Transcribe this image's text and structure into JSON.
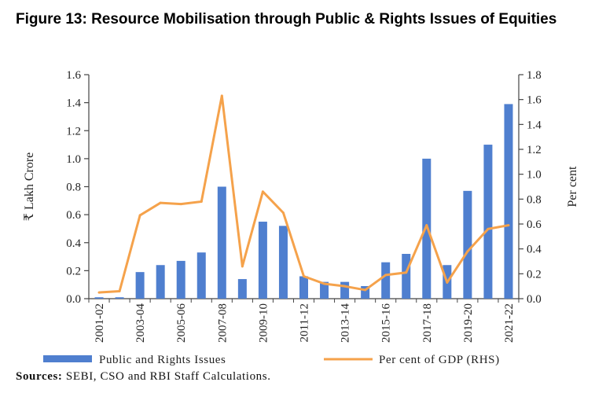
{
  "figure_title": "Figure 13:  Resource Mobilisation through Public & Rights Issues of Equities",
  "sources": {
    "label": "Sources:",
    "text": "SEBI, CSO and RBI Staff Calculations."
  },
  "colors": {
    "bar": "#4f7fcf",
    "line": "#f5a24b",
    "axis": "#444444"
  },
  "chart_data": {
    "type": "bar",
    "title": "Resource Mobilisation through Public & Rights Issues of Equities",
    "categories": [
      "2001-02",
      "2002-03",
      "2003-04",
      "2004-05",
      "2005-06",
      "2006-07",
      "2007-08",
      "2008-09",
      "2009-10",
      "2010-11",
      "2011-12",
      "2012-13",
      "2013-14",
      "2014-15",
      "2015-16",
      "2016-17",
      "2017-18",
      "2018-19",
      "2019-20",
      "2020-21",
      "2021-22"
    ],
    "tick_labels": [
      "2001-02",
      "",
      "2003-04",
      "",
      "2005-06",
      "",
      "2007-08",
      "",
      "2009-10",
      "",
      "2011-12",
      "",
      "2013-14",
      "",
      "2015-16",
      "",
      "2017-18",
      "",
      "2019-20",
      "",
      "2021-22"
    ],
    "ylabel": "₹ Lakh Crore",
    "ylabel_right": "Per cent",
    "ylim": [
      0,
      1.6
    ],
    "ylim_right": [
      0,
      1.8
    ],
    "yticks": [
      "0.0",
      "0.2",
      "0.4",
      "0.6",
      "0.8",
      "1.0",
      "1.2",
      "1.4",
      "1.6"
    ],
    "yticks_right": [
      "0.0",
      "0.2",
      "0.4",
      "0.6",
      "0.8",
      "1.0",
      "1.2",
      "1.4",
      "1.6",
      "1.8"
    ],
    "grid": false,
    "legend_position": "bottom",
    "series": [
      {
        "name": "Public and Rights Issues",
        "type": "bar",
        "axis": "left",
        "values": [
          0.01,
          0.01,
          0.19,
          0.24,
          0.27,
          0.33,
          0.8,
          0.14,
          0.55,
          0.52,
          0.16,
          0.12,
          0.12,
          0.09,
          0.26,
          0.32,
          1.0,
          0.24,
          0.77,
          1.1,
          1.39
        ]
      },
      {
        "name": "Per cent of GDP (RHS)",
        "type": "line",
        "axis": "right",
        "values": [
          0.05,
          0.06,
          0.67,
          0.77,
          0.76,
          0.78,
          1.63,
          0.26,
          0.86,
          0.69,
          0.18,
          0.12,
          0.1,
          0.07,
          0.19,
          0.21,
          0.59,
          0.13,
          0.38,
          0.56,
          0.59
        ]
      }
    ]
  }
}
